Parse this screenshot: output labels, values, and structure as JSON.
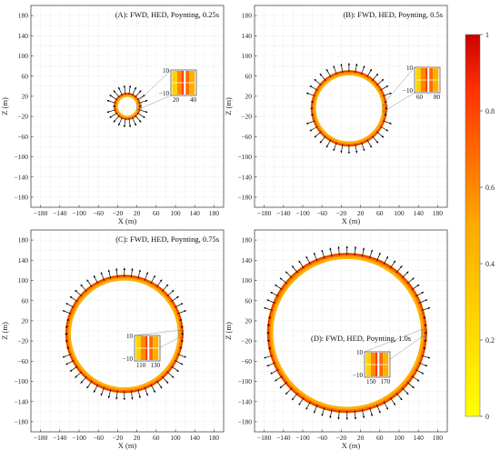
{
  "chart_data": [
    {
      "type": "vector-field",
      "title": "(A): FWD, HED, Poynting, 0.25s",
      "xlabel": "X (m)",
      "ylabel": "Z (m)",
      "xlim": [
        -200,
        200
      ],
      "ylim": [
        -200,
        200
      ],
      "xticks": [
        -180,
        -140,
        -100,
        -60,
        -20,
        20,
        60,
        100,
        140,
        180
      ],
      "yticks": [
        180,
        140,
        100,
        60,
        20,
        -20,
        -60,
        -100,
        -140,
        -180
      ],
      "xtick_labels": [
        "−180",
        "−140",
        "−100",
        "−60",
        "−20",
        "20",
        "60",
        "100",
        "140",
        "180"
      ],
      "ytick_labels": [
        "180",
        "140",
        "100",
        "60",
        "20",
        "−20",
        "−60",
        "−100",
        "−140",
        "−180"
      ],
      "grid": true,
      "ring": {
        "center": [
          0,
          0
        ],
        "radius": 24,
        "width": 9
      },
      "arrows": 22,
      "inset": {
        "xlim": [
          20,
          40
        ],
        "ylim": [
          -10,
          10
        ],
        "x_labels": [
          "20",
          "40"
        ],
        "y_labels": [
          "10",
          "−10"
        ]
      }
    },
    {
      "type": "vector-field",
      "title": "(B): FWD, HED, Poynting, 0.5s",
      "xlabel": "X (m)",
      "ylabel": "Z (m)",
      "xlim": [
        -200,
        200
      ],
      "ylim": [
        -200,
        200
      ],
      "xticks": [
        -180,
        -140,
        -100,
        -60,
        -20,
        20,
        60,
        100,
        140,
        180
      ],
      "yticks": [
        180,
        140,
        100,
        60,
        20,
        -20,
        -60,
        -100,
        -140,
        -180
      ],
      "xtick_labels": [
        "−180",
        "−140",
        "−100",
        "−60",
        "−20",
        "20",
        "60",
        "100",
        "140",
        "180"
      ],
      "ytick_labels": [
        "180",
        "140",
        "100",
        "60",
        "20",
        "−20",
        "−60",
        "−100",
        "−140",
        "−180"
      ],
      "grid": true,
      "ring": {
        "center": [
          -4,
          -4
        ],
        "radius": 74,
        "width": 11
      },
      "arrows": 36,
      "inset": {
        "xlim": [
          60,
          80
        ],
        "ylim": [
          -10,
          10
        ],
        "x_labels": [
          "60",
          "80"
        ],
        "y_labels": [
          "10",
          "−10"
        ]
      }
    },
    {
      "type": "vector-field",
      "title": "(C): FWD, HED, Poynting, 0.75s",
      "xlabel": "X (m)",
      "ylabel": "Z (m)",
      "xlim": [
        -200,
        200
      ],
      "ylim": [
        -200,
        200
      ],
      "xticks": [
        -180,
        -140,
        -100,
        -60,
        -20,
        20,
        60,
        100,
        140,
        180
      ],
      "yticks": [
        180,
        140,
        100,
        60,
        20,
        -20,
        -60,
        -100,
        -140,
        -180
      ],
      "xtick_labels": [
        "−180",
        "−140",
        "−100",
        "−60",
        "−20",
        "20",
        "60",
        "100",
        "140",
        "180"
      ],
      "ytick_labels": [
        "180",
        "140",
        "100",
        "60",
        "20",
        "−20",
        "−60",
        "−100",
        "−140",
        "−180"
      ],
      "grid": true,
      "ring": {
        "center": [
          -6,
          -6
        ],
        "radius": 117,
        "width": 12
      },
      "arrows": 52,
      "inset": {
        "xlim": [
          110,
          130
        ],
        "ylim": [
          -10,
          10
        ],
        "x_labels": [
          "110",
          "130"
        ],
        "y_labels": [
          "10",
          "−10"
        ]
      }
    },
    {
      "type": "vector-field",
      "title": "(D): FWD, HED, Poynting, 1.0s",
      "xlabel": "X (m)",
      "ylabel": "Z (m)",
      "xlim": [
        -200,
        200
      ],
      "ylim": [
        -200,
        200
      ],
      "xticks": [
        -180,
        -140,
        -100,
        -60,
        -20,
        20,
        60,
        100,
        140,
        180
      ],
      "yticks": [
        180,
        140,
        100,
        60,
        20,
        -20,
        -60,
        -100,
        -140,
        -180
      ],
      "xtick_labels": [
        "−180",
        "−140",
        "−100",
        "−60",
        "−20",
        "20",
        "60",
        "100",
        "140",
        "180"
      ],
      "ytick_labels": [
        "180",
        "140",
        "100",
        "60",
        "20",
        "−20",
        "−60",
        "−100",
        "−140",
        "−180"
      ],
      "grid": true,
      "ring": {
        "center": [
          -8,
          -4
        ],
        "radius": 160,
        "width": 13
      },
      "arrows": 64,
      "inset": {
        "xlim": [
          150,
          170
        ],
        "ylim": [
          -10,
          10
        ],
        "x_labels": [
          "150",
          "170"
        ],
        "y_labels": [
          "10",
          "−10"
        ]
      }
    }
  ],
  "colorbar": {
    "min": 0,
    "max": 1,
    "ticks": [
      1,
      0.8,
      0.6,
      0.4,
      0.2,
      0
    ],
    "tick_labels": [
      "1",
      "0.8",
      "0.6",
      "0.4",
      "0.2",
      "0"
    ],
    "colors": [
      "#ffff00",
      "#ffaa00",
      "#ff3300",
      "#cc0000"
    ]
  }
}
